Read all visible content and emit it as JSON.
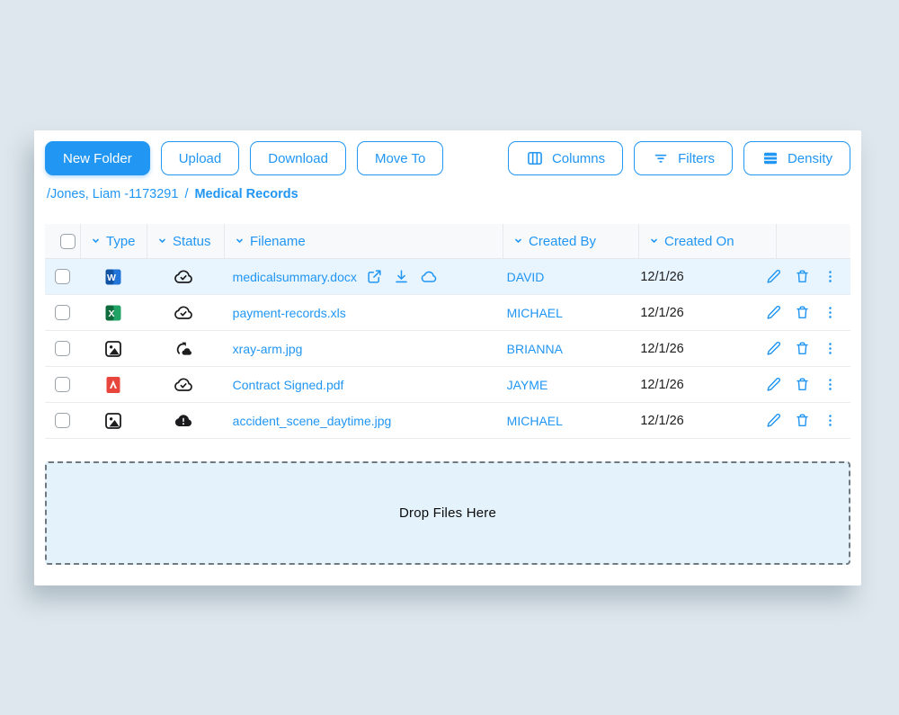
{
  "colors": {
    "accent": "#2196F3",
    "page_bg": "#DEE7ED",
    "selected_row": "#E8F5FE",
    "dropzone_bg": "#E3F2FB",
    "status_icon": "#1C1C1E"
  },
  "toolbar": {
    "left_buttons": [
      {
        "label": "New Folder",
        "variant": "primary"
      },
      {
        "label": "Upload",
        "variant": "outline"
      },
      {
        "label": "Download",
        "variant": "outline"
      },
      {
        "label": "Move To",
        "variant": "outline"
      }
    ],
    "right_buttons": [
      {
        "label": "Columns",
        "icon": "columns-icon"
      },
      {
        "label": "Filters",
        "icon": "filter-icon"
      },
      {
        "label": "Density",
        "icon": "density-icon"
      }
    ]
  },
  "breadcrumb": {
    "parent": "/Jones, Liam -1173291",
    "separator": "/",
    "current": "Medical Records"
  },
  "table": {
    "headers": [
      "Type",
      "Status",
      "Filename",
      "Created By",
      "Created On"
    ],
    "rows": [
      {
        "selected": true,
        "type_icon": "word-file-icon",
        "status_icon": "cloud-check-icon",
        "filename": "medicalsummary.docx",
        "filename_icons": [
          "external-link-icon",
          "download-icon",
          "cloud-icon"
        ],
        "created_by": "DAVID",
        "created_on": "12/1/26"
      },
      {
        "selected": false,
        "type_icon": "excel-file-icon",
        "status_icon": "cloud-check-icon",
        "filename": "payment-records.xls",
        "filename_icons": [],
        "created_by": "MICHAEL",
        "created_on": "12/1/26"
      },
      {
        "selected": false,
        "type_icon": "image-file-icon",
        "status_icon": "cloud-sync-icon",
        "filename": "xray-arm.jpg",
        "filename_icons": [],
        "created_by": "BRIANNA",
        "created_on": "12/1/26"
      },
      {
        "selected": false,
        "type_icon": "pdf-file-icon",
        "status_icon": "cloud-check-icon",
        "filename": "Contract Signed.pdf",
        "filename_icons": [],
        "created_by": "JAYME",
        "created_on": "12/1/26"
      },
      {
        "selected": false,
        "type_icon": "image-file-icon",
        "status_icon": "cloud-alert-icon",
        "filename": "accident_scene_daytime.jpg",
        "filename_icons": [],
        "created_by": "MICHAEL",
        "created_on": "12/1/26"
      }
    ]
  },
  "dropzone": {
    "label": "Drop Files Here"
  }
}
